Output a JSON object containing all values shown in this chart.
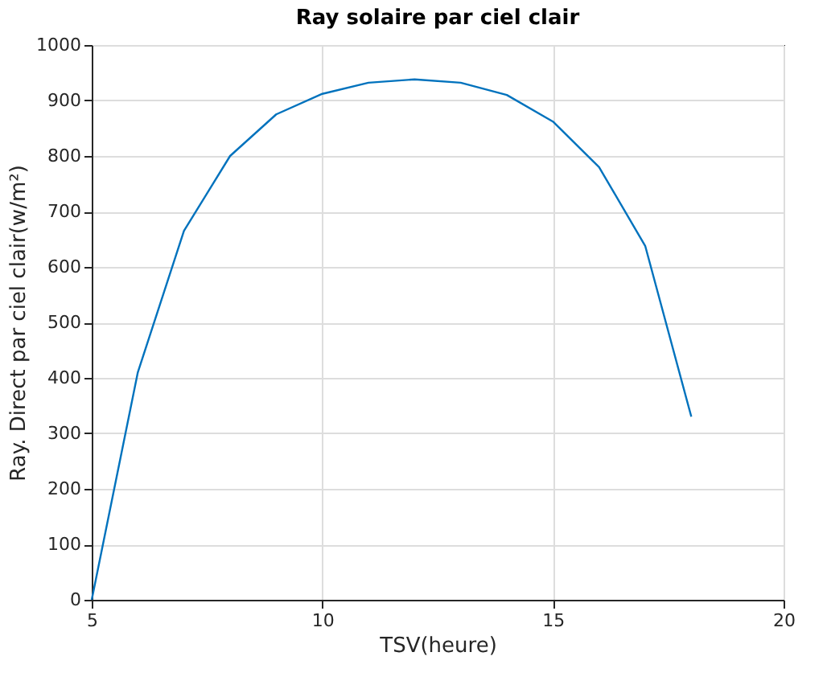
{
  "chart_data": {
    "type": "line",
    "title": "Ray solaire par ciel clair",
    "xlabel": "TSV(heure)",
    "ylabel": "Ray. Direct par ciel clair(w/m²)",
    "x": [
      5,
      6,
      7,
      8,
      9,
      10,
      11,
      12,
      13,
      14,
      15,
      16,
      17,
      18
    ],
    "series": [
      {
        "color": "#0072bd",
        "values": [
          0,
          410,
          665,
          800,
          875,
          912,
          932,
          938,
          932,
          910,
          862,
          780,
          638,
          330
        ]
      }
    ],
    "xlim": [
      5,
      20
    ],
    "xticks": [
      5,
      10,
      15,
      20
    ],
    "ylim": [
      0,
      1000
    ],
    "yticks": [
      0,
      100,
      200,
      300,
      400,
      500,
      600,
      700,
      800,
      900,
      1000
    ],
    "grid": true,
    "marker": "none",
    "line_style": "solid"
  }
}
